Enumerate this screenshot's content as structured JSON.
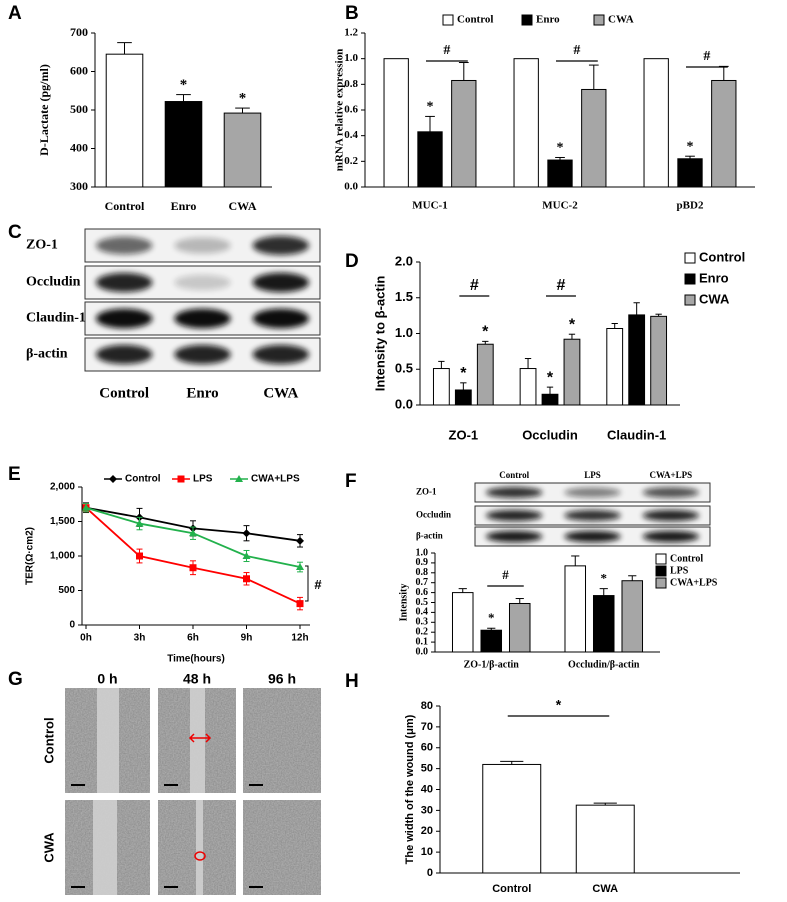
{
  "panel_labels": [
    "A",
    "B",
    "C",
    "D",
    "E",
    "F",
    "G",
    "H"
  ],
  "chart_data": [
    {
      "type": "bar",
      "ylabel": "D-Lactate (pg/ml)",
      "categories": [
        "Control",
        "Enro",
        "CWA"
      ],
      "values": [
        645,
        522,
        492
      ],
      "errors": [
        30,
        18,
        13
      ],
      "colors": [
        "#ffffff",
        "#000000",
        "#a6a6a6"
      ],
      "ylim": [
        300,
        700
      ],
      "yticks": [
        300,
        400,
        500,
        600,
        700
      ],
      "annotations": [
        "*",
        "*"
      ]
    },
    {
      "type": "bar",
      "ylabel": "mRNA relative expression",
      "categories": [
        "MUC-1",
        "MUC-2",
        "pBD2"
      ],
      "series": [
        {
          "name": "Control",
          "color": "#ffffff",
          "values": [
            1,
            1,
            1
          ]
        },
        {
          "name": "Enro",
          "color": "#000000",
          "values": [
            0.43,
            0.21,
            0.22
          ],
          "errors": [
            0.12,
            0.02,
            0.02
          ]
        },
        {
          "name": "CWA",
          "color": "#a6a6a6",
          "values": [
            0.83,
            0.76,
            0.83
          ],
          "errors": [
            0.14,
            0.19,
            0.11
          ]
        }
      ],
      "ylim": [
        0,
        1.2
      ],
      "yticks": [
        {
          "value": 0,
          "label": "0.0"
        },
        0.2,
        0.4,
        0.6,
        0.8,
        {
          "value": 1,
          "label": "1.0"
        },
        1.2
      ],
      "annotations": [
        "#",
        "#",
        "#",
        "*",
        "*",
        "*"
      ]
    },
    {
      "type": "bar",
      "ylabel": "Intensity to β-actin",
      "categories": [
        "ZO-1",
        "Occludin",
        "Claudin-1"
      ],
      "series": [
        {
          "name": "Control",
          "color": "#ffffff",
          "values": [
            0.51,
            0.51,
            1.07
          ],
          "errors": [
            0.1,
            0.14,
            0.07
          ]
        },
        {
          "name": "Enro",
          "color": "#000000",
          "values": [
            0.21,
            0.15,
            1.26
          ],
          "errors": [
            0.1,
            0.1,
            0.17
          ]
        },
        {
          "name": "CWA",
          "color": "#a6a6a6",
          "values": [
            0.85,
            0.92,
            1.24
          ],
          "errors": [
            0.04,
            0.07,
            0.03
          ]
        }
      ],
      "ylim": [
        0,
        2
      ],
      "yticks": [
        {
          "value": 0,
          "label": "0.0"
        },
        0.5,
        {
          "value": 1,
          "label": "1.0"
        },
        1.5,
        {
          "value": 2,
          "label": "2.0"
        }
      ],
      "annotations": [
        "#",
        "#",
        "*",
        "*",
        "*",
        "*"
      ]
    },
    {
      "type": "line",
      "ylabel": "TER(Ω·cm2)",
      "xlabel": "Time(hours)",
      "categories": [
        "0h",
        "3h",
        "6h",
        "9h",
        "12h"
      ],
      "series": [
        {
          "name": "Control",
          "color": "#000000",
          "values": [
            1700,
            1560,
            1400,
            1330,
            1220
          ],
          "errors": [
            70,
            130,
            110,
            110,
            90
          ]
        },
        {
          "name": "LPS",
          "color": "#ff0000",
          "values": [
            1700,
            1000,
            830,
            670,
            310
          ],
          "errors": [
            60,
            100,
            100,
            90,
            90
          ]
        },
        {
          "name": "CWA+LPS",
          "color": "#22b14c",
          "values": [
            1700,
            1470,
            1330,
            1000,
            840
          ],
          "errors": [
            60,
            90,
            90,
            80,
            70
          ]
        }
      ],
      "ylim": [
        0,
        2000
      ],
      "yticks": [
        0,
        500,
        {
          "value": 1000,
          "label": "1,000"
        },
        {
          "value": 1500,
          "label": "1,500"
        },
        {
          "value": 2000,
          "label": "2,000"
        }
      ],
      "annotations": [
        "#"
      ]
    },
    {
      "type": "bar",
      "ylabel": "Intensity",
      "categories": [
        "ZO-1/β-actin",
        "Occludin/β-actin"
      ],
      "series": [
        {
          "name": "Control",
          "color": "#ffffff",
          "values": [
            0.6,
            0.87
          ],
          "errors": [
            0.04,
            0.1
          ]
        },
        {
          "name": "LPS",
          "color": "#000000",
          "values": [
            0.22,
            0.57
          ],
          "errors": [
            0.02,
            0.07
          ]
        },
        {
          "name": "CWA+LPS",
          "color": "#a6a6a6",
          "values": [
            0.49,
            0.72
          ],
          "errors": [
            0.05,
            0.05
          ]
        }
      ],
      "ylim": [
        0,
        1
      ],
      "yticks": [
        {
          "value": 0,
          "label": "0.0"
        },
        0.1,
        0.2,
        0.3,
        0.4,
        0.5,
        0.6,
        0.7,
        0.8,
        0.9,
        {
          "value": 1,
          "label": "1.0"
        }
      ],
      "annotations": [
        "#",
        "*",
        "*"
      ]
    },
    {
      "type": "bar",
      "ylabel": "The width of the wound (μm)",
      "categories": [
        "Control",
        "CWA"
      ],
      "values": [
        52,
        32.5
      ],
      "errors": [
        1.5,
        1
      ],
      "color": "#ffffff",
      "ylim": [
        0,
        80
      ],
      "yticks": [
        0,
        10,
        20,
        30,
        40,
        50,
        60,
        70,
        80
      ],
      "annotations": [
        "*"
      ]
    }
  ],
  "blot_c": {
    "rows": [
      "ZO-1",
      "Occludin",
      "Claudin-1",
      "β-actin"
    ],
    "columns": [
      "Control",
      "Enro",
      "CWA"
    ]
  },
  "blot_f": {
    "rows": [
      "ZO-1",
      "Occludin",
      "β-actin"
    ],
    "columns": [
      "Control",
      "LPS",
      "CWA+LPS"
    ]
  },
  "wound_images": {
    "columns": [
      "0 h",
      "48 h",
      "96 h"
    ],
    "rows": [
      "Control",
      "CWA"
    ]
  }
}
